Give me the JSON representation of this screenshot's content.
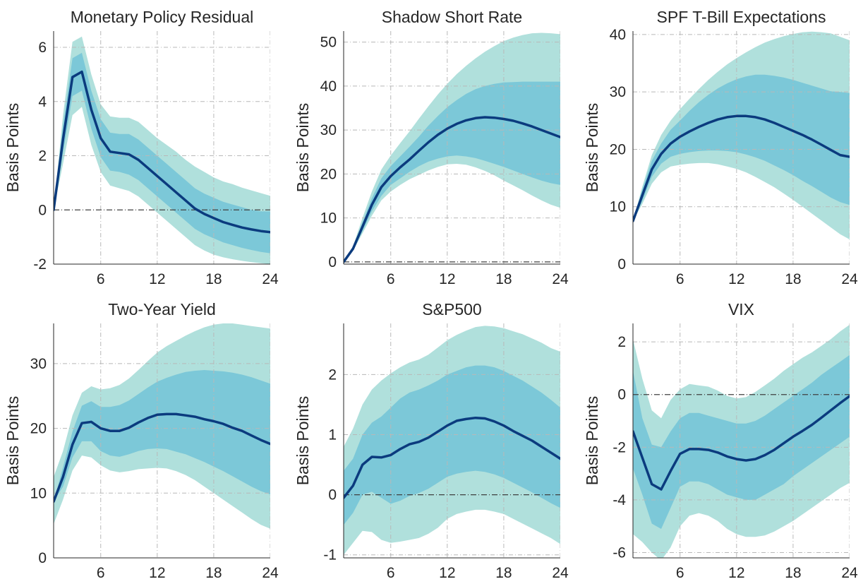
{
  "figure": {
    "colors": {
      "outer_band": "#b0e0dc",
      "inner_band": "#7cc8d8",
      "line": "#0b3b7e",
      "grid": "#b8b8b8",
      "zero_line": "#404040"
    }
  },
  "chart_data": [
    {
      "type": "area",
      "title": "Monetary Policy Residual",
      "ylabel": "Basis Points",
      "xlim": [
        1,
        24
      ],
      "ylim": [
        -2,
        6.6
      ],
      "xticks": [
        6,
        12,
        18,
        24
      ],
      "xticklabels": [
        "6",
        "12",
        "18",
        "24"
      ],
      "yticks": [
        -2,
        0,
        2,
        4,
        6
      ],
      "yticklabels": [
        "-2",
        "0",
        "2",
        "4",
        "6"
      ],
      "grid": true,
      "zero_line": true,
      "x": [
        1,
        2,
        3,
        4,
        5,
        6,
        7,
        8,
        9,
        10,
        11,
        12,
        13,
        14,
        15,
        16,
        17,
        18,
        19,
        20,
        21,
        22,
        23,
        24
      ],
      "median": [
        0,
        2.6,
        4.9,
        5.1,
        3.7,
        2.65,
        2.15,
        2.1,
        2.05,
        1.85,
        1.55,
        1.25,
        0.95,
        0.65,
        0.35,
        0.05,
        -0.15,
        -0.3,
        -0.45,
        -0.55,
        -0.65,
        -0.72,
        -0.78,
        -0.82
      ],
      "inner_lower": [
        0,
        2.1,
        4.2,
        4.4,
        3.0,
        1.95,
        1.45,
        1.4,
        1.3,
        1.1,
        0.8,
        0.5,
        0.2,
        -0.1,
        -0.4,
        -0.7,
        -0.9,
        -1.05,
        -1.2,
        -1.3,
        -1.4,
        -1.48,
        -1.55,
        -1.6
      ],
      "inner_upper": [
        0,
        3.1,
        5.6,
        5.8,
        4.4,
        3.35,
        2.85,
        2.8,
        2.8,
        2.6,
        2.3,
        2.0,
        1.7,
        1.4,
        1.1,
        0.8,
        0.6,
        0.45,
        0.3,
        0.2,
        0.1,
        0.0,
        -0.05,
        -0.05
      ],
      "outer_lower": [
        0,
        1.7,
        3.5,
        3.8,
        2.4,
        1.4,
        0.9,
        0.8,
        0.7,
        0.5,
        0.2,
        -0.1,
        -0.4,
        -0.7,
        -1.0,
        -1.3,
        -1.5,
        -1.65,
        -1.75,
        -1.82,
        -1.88,
        -1.93,
        -1.97,
        -2.0
      ],
      "outer_upper": [
        0,
        3.5,
        6.2,
        6.4,
        5.0,
        3.9,
        3.45,
        3.4,
        3.4,
        3.25,
        2.95,
        2.65,
        2.4,
        2.15,
        1.85,
        1.6,
        1.4,
        1.2,
        1.05,
        0.95,
        0.82,
        0.72,
        0.62,
        0.52
      ]
    },
    {
      "type": "area",
      "title": "Shadow Short Rate",
      "ylabel": "Basis Points",
      "xlim": [
        1,
        24
      ],
      "ylim": [
        -0.5,
        52.5
      ],
      "xticks": [
        6,
        12,
        18,
        24
      ],
      "xticklabels": [
        "6",
        "12",
        "18",
        "24"
      ],
      "yticks": [
        0,
        10,
        20,
        30,
        40,
        50
      ],
      "yticklabels": [
        "0",
        "10",
        "20",
        "30",
        "40",
        "50"
      ],
      "grid": true,
      "zero_line": true,
      "x": [
        1,
        2,
        3,
        4,
        5,
        6,
        7,
        8,
        9,
        10,
        11,
        12,
        13,
        14,
        15,
        16,
        17,
        18,
        19,
        20,
        21,
        22,
        23,
        24
      ],
      "median": [
        0,
        3,
        8,
        13,
        17,
        19.5,
        21.5,
        23.3,
        25.3,
        27.2,
        28.9,
        30.3,
        31.4,
        32.2,
        32.7,
        32.9,
        32.8,
        32.5,
        32.1,
        31.5,
        30.8,
        30.0,
        29.2,
        28.4
      ],
      "inner_lower": [
        0,
        2.7,
        7,
        11.5,
        15,
        17.5,
        19,
        20.5,
        21.8,
        22.8,
        23.5,
        24.0,
        24.2,
        24.0,
        23.6,
        23.0,
        22.3,
        21.6,
        20.8,
        20.0,
        19.2,
        18.5,
        17.9,
        17.5
      ],
      "inner_upper": [
        0,
        3.3,
        9,
        14.5,
        19,
        21.8,
        24,
        26.2,
        28.5,
        31,
        33.2,
        35.2,
        36.8,
        38.2,
        39.3,
        40.0,
        40.5,
        40.8,
        40.9,
        41.0,
        41.0,
        41.0,
        41.0,
        41.0
      ],
      "outer_lower": [
        0,
        2.5,
        6.5,
        10.5,
        14,
        16,
        17.5,
        18.8,
        19.8,
        20.8,
        21.6,
        22.2,
        22.3,
        22.1,
        21.5,
        20.7,
        19.7,
        18.5,
        17.4,
        16.3,
        15.1,
        14.0,
        13.0,
        12.3
      ],
      "outer_upper": [
        0,
        3.6,
        10,
        16,
        21,
        24.2,
        27,
        29.7,
        32.6,
        35.4,
        38.1,
        40.5,
        42.7,
        44.6,
        46.3,
        47.8,
        49.1,
        50.2,
        51.0,
        51.6,
        52.0,
        52.1,
        52.0,
        51.8
      ]
    },
    {
      "type": "area",
      "title": "SPF T-Bill Expectations",
      "ylabel": "Basis Points",
      "xlim": [
        1,
        24
      ],
      "ylim": [
        0,
        40.6
      ],
      "xticks": [
        6,
        12,
        18,
        24
      ],
      "xticklabels": [
        "6",
        "12",
        "18",
        "24"
      ],
      "yticks": [
        0,
        10,
        20,
        30,
        40
      ],
      "yticklabels": [
        "0",
        "10",
        "20",
        "30",
        "40"
      ],
      "grid": true,
      "zero_line": false,
      "x": [
        1,
        2,
        3,
        4,
        5,
        6,
        7,
        8,
        9,
        10,
        11,
        12,
        13,
        14,
        15,
        16,
        17,
        18,
        19,
        20,
        21,
        22,
        23,
        24
      ],
      "median": [
        7.5,
        12,
        16.5,
        19.2,
        21,
        22.2,
        23.1,
        23.9,
        24.6,
        25.2,
        25.6,
        25.8,
        25.8,
        25.6,
        25.2,
        24.6,
        23.9,
        23.2,
        22.5,
        21.7,
        20.8,
        19.9,
        19.0,
        18.7
      ],
      "inner_lower": [
        7.5,
        11,
        15.2,
        17.5,
        18.7,
        19.2,
        19.5,
        19.7,
        19.8,
        19.8,
        19.7,
        19.5,
        19.1,
        18.6,
        18.0,
        17.2,
        16.4,
        15.5,
        14.5,
        13.6,
        12.6,
        11.6,
        10.8,
        10.3
      ],
      "inner_upper": [
        7.5,
        13,
        18,
        21,
        23.4,
        25,
        26.7,
        28.2,
        29.5,
        30.6,
        31.5,
        32.2,
        32.7,
        33.0,
        33.0,
        32.8,
        32.5,
        32.1,
        31.6,
        31.1,
        30.6,
        30.1,
        30.0,
        29.8
      ],
      "outer_lower": [
        7.5,
        10.5,
        14.0,
        16.0,
        17.0,
        17.3,
        17.5,
        17.6,
        17.6,
        17.4,
        17.0,
        16.6,
        16.0,
        15.2,
        14.3,
        13.4,
        12.3,
        11.2,
        10.0,
        8.8,
        7.6,
        6.4,
        5.2,
        4.3
      ],
      "outer_upper": [
        7.5,
        13.5,
        19.0,
        22.5,
        25.0,
        27.0,
        28.8,
        30.5,
        32.1,
        33.5,
        34.8,
        35.9,
        36.9,
        37.8,
        38.6,
        39.2,
        39.7,
        40.1,
        40.4,
        40.5,
        40.4,
        40.2,
        39.6,
        39.0
      ]
    },
    {
      "type": "area",
      "title": "Two-Year Yield",
      "ylabel": "Basis Points",
      "xlim": [
        1,
        24
      ],
      "ylim": [
        0,
        36.2
      ],
      "xticks": [
        6,
        12,
        18,
        24
      ],
      "xticklabels": [
        "6",
        "12",
        "18",
        "24"
      ],
      "yticks": [
        0,
        10,
        20,
        30
      ],
      "yticklabels": [
        "0",
        "10",
        "20",
        "30"
      ],
      "grid": true,
      "zero_line": false,
      "x": [
        1,
        2,
        3,
        4,
        5,
        6,
        7,
        8,
        9,
        10,
        11,
        12,
        13,
        14,
        15,
        16,
        17,
        18,
        19,
        20,
        21,
        22,
        23,
        24
      ],
      "median": [
        8.7,
        12.5,
        17.5,
        20.8,
        21.0,
        20.0,
        19.6,
        19.6,
        20.1,
        20.9,
        21.6,
        22.1,
        22.2,
        22.2,
        22.0,
        21.8,
        21.4,
        21.1,
        20.7,
        20.1,
        19.6,
        18.9,
        18.2,
        17.6
      ],
      "inner_lower": [
        8.7,
        11,
        15.5,
        18,
        18,
        16.5,
        15.8,
        15.6,
        16,
        16.5,
        16.8,
        16.9,
        16.8,
        16.4,
        16,
        15.4,
        14.8,
        14.1,
        13.4,
        12.6,
        11.8,
        11.0,
        10.3,
        9.8
      ],
      "inner_upper": [
        8.7,
        14,
        19.5,
        23.5,
        24.2,
        23.3,
        23.3,
        23.6,
        24.3,
        25.3,
        26.3,
        27.2,
        27.8,
        28.3,
        28.7,
        28.9,
        29.0,
        28.9,
        28.8,
        28.6,
        28.3,
        27.9,
        27.4,
        26.9
      ],
      "outer_lower": [
        5.2,
        9,
        13.5,
        15.8,
        15.5,
        14.3,
        13.5,
        13.2,
        13.4,
        13.7,
        13.8,
        13.9,
        13.8,
        13.4,
        12.8,
        12.0,
        11.0,
        10.0,
        9.0,
        8.0,
        7.0,
        6.0,
        5.1,
        4.5
      ],
      "outer_upper": [
        12.5,
        16.5,
        22,
        25.5,
        26.5,
        26.0,
        26.2,
        26.7,
        27.7,
        29.0,
        30.4,
        31.7,
        32.7,
        33.5,
        34.3,
        35.0,
        35.6,
        36.0,
        36.2,
        36.2,
        36.0,
        35.8,
        35.6,
        35.4
      ]
    },
    {
      "type": "area",
      "title": "S&P500",
      "ylabel": "Basis Points",
      "xlim": [
        1,
        24
      ],
      "ylim": [
        -1.05,
        2.85
      ],
      "xticks": [
        6,
        12,
        18,
        24
      ],
      "xticklabels": [
        "6",
        "12",
        "18",
        "24"
      ],
      "yticks": [
        -1,
        0,
        1,
        2
      ],
      "yticklabels": [
        "-1",
        "0",
        "1",
        "2"
      ],
      "grid": true,
      "zero_line": true,
      "x": [
        1,
        2,
        3,
        4,
        5,
        6,
        7,
        8,
        9,
        10,
        11,
        12,
        13,
        14,
        15,
        16,
        17,
        18,
        19,
        20,
        21,
        22,
        23,
        24
      ],
      "median": [
        -0.05,
        0.15,
        0.5,
        0.63,
        0.62,
        0.66,
        0.76,
        0.84,
        0.88,
        0.95,
        1.05,
        1.15,
        1.23,
        1.26,
        1.28,
        1.27,
        1.22,
        1.15,
        1.06,
        0.98,
        0.9,
        0.8,
        0.7,
        0.6
      ],
      "inner_lower": [
        -0.5,
        -0.3,
        0.0,
        0.05,
        -0.05,
        -0.15,
        -0.1,
        -0.02,
        0.03,
        0.1,
        0.2,
        0.3,
        0.35,
        0.38,
        0.4,
        0.38,
        0.34,
        0.28,
        0.2,
        0.12,
        0.04,
        -0.05,
        -0.14,
        -0.22
      ],
      "inner_upper": [
        0.4,
        0.6,
        1.0,
        1.2,
        1.3,
        1.45,
        1.6,
        1.7,
        1.75,
        1.82,
        1.9,
        2.0,
        2.06,
        2.12,
        2.15,
        2.15,
        2.12,
        2.06,
        1.98,
        1.9,
        1.8,
        1.7,
        1.58,
        1.45
      ],
      "outer_lower": [
        -1.0,
        -0.8,
        -0.6,
        -0.62,
        -0.75,
        -0.8,
        -0.78,
        -0.75,
        -0.72,
        -0.65,
        -0.55,
        -0.4,
        -0.32,
        -0.28,
        -0.25,
        -0.25,
        -0.28,
        -0.32,
        -0.4,
        -0.48,
        -0.56,
        -0.64,
        -0.72,
        -0.82
      ],
      "outer_upper": [
        0.8,
        1.1,
        1.5,
        1.75,
        1.9,
        2.02,
        2.12,
        2.2,
        2.25,
        2.33,
        2.45,
        2.57,
        2.66,
        2.73,
        2.79,
        2.81,
        2.8,
        2.77,
        2.72,
        2.67,
        2.6,
        2.53,
        2.44,
        2.38
      ]
    },
    {
      "type": "area",
      "title": "VIX",
      "ylabel": "Basis Points",
      "xlim": [
        1,
        24
      ],
      "ylim": [
        -6.2,
        2.7
      ],
      "xticks": [
        6,
        12,
        18,
        24
      ],
      "xticklabels": [
        "6",
        "12",
        "18",
        "24"
      ],
      "yticks": [
        -6,
        -4,
        -2,
        0,
        2
      ],
      "yticklabels": [
        "-6",
        "-4",
        "-2",
        "0",
        "2"
      ],
      "grid": true,
      "zero_line": true,
      "x": [
        1,
        2,
        3,
        4,
        5,
        6,
        7,
        8,
        9,
        10,
        11,
        12,
        13,
        14,
        15,
        16,
        17,
        18,
        19,
        20,
        21,
        22,
        23,
        24
      ],
      "median": [
        -1.4,
        -2.4,
        -3.4,
        -3.6,
        -2.9,
        -2.25,
        -2.07,
        -2.07,
        -2.1,
        -2.2,
        -2.35,
        -2.45,
        -2.5,
        -2.45,
        -2.3,
        -2.1,
        -1.85,
        -1.6,
        -1.38,
        -1.15,
        -0.88,
        -0.6,
        -0.32,
        -0.06
      ],
      "inner_lower": [
        -2.8,
        -3.8,
        -4.9,
        -5.1,
        -4.3,
        -3.5,
        -3.3,
        -3.3,
        -3.4,
        -3.6,
        -3.8,
        -3.9,
        -4.0,
        -4.0,
        -3.8,
        -3.6,
        -3.4,
        -3.1,
        -2.85,
        -2.6,
        -2.35,
        -2.1,
        -1.85,
        -1.6
      ],
      "inner_upper": [
        0.9,
        -0.9,
        -1.9,
        -2.0,
        -1.4,
        -0.9,
        -0.7,
        -0.7,
        -0.8,
        -0.9,
        -1.0,
        -1.1,
        -1.1,
        -1.0,
        -0.8,
        -0.55,
        -0.3,
        -0.05,
        0.2,
        0.45,
        0.75,
        1.0,
        1.25,
        1.5
      ],
      "outer_lower": [
        -5.3,
        -5.6,
        -6.0,
        -6.3,
        -5.8,
        -5.0,
        -4.6,
        -4.5,
        -4.6,
        -4.8,
        -5.1,
        -5.3,
        -5.4,
        -5.4,
        -5.35,
        -5.2,
        -5.0,
        -4.8,
        -4.55,
        -4.3,
        -4.05,
        -3.8,
        -3.55,
        -3.35
      ],
      "outer_upper": [
        2.1,
        0.6,
        -0.6,
        -0.9,
        -0.2,
        0.2,
        0.4,
        0.35,
        0.3,
        0.15,
        -0.05,
        -0.15,
        -0.1,
        0.1,
        0.35,
        0.6,
        0.9,
        1.15,
        1.4,
        1.6,
        1.85,
        2.1,
        2.4,
        2.65
      ]
    }
  ]
}
